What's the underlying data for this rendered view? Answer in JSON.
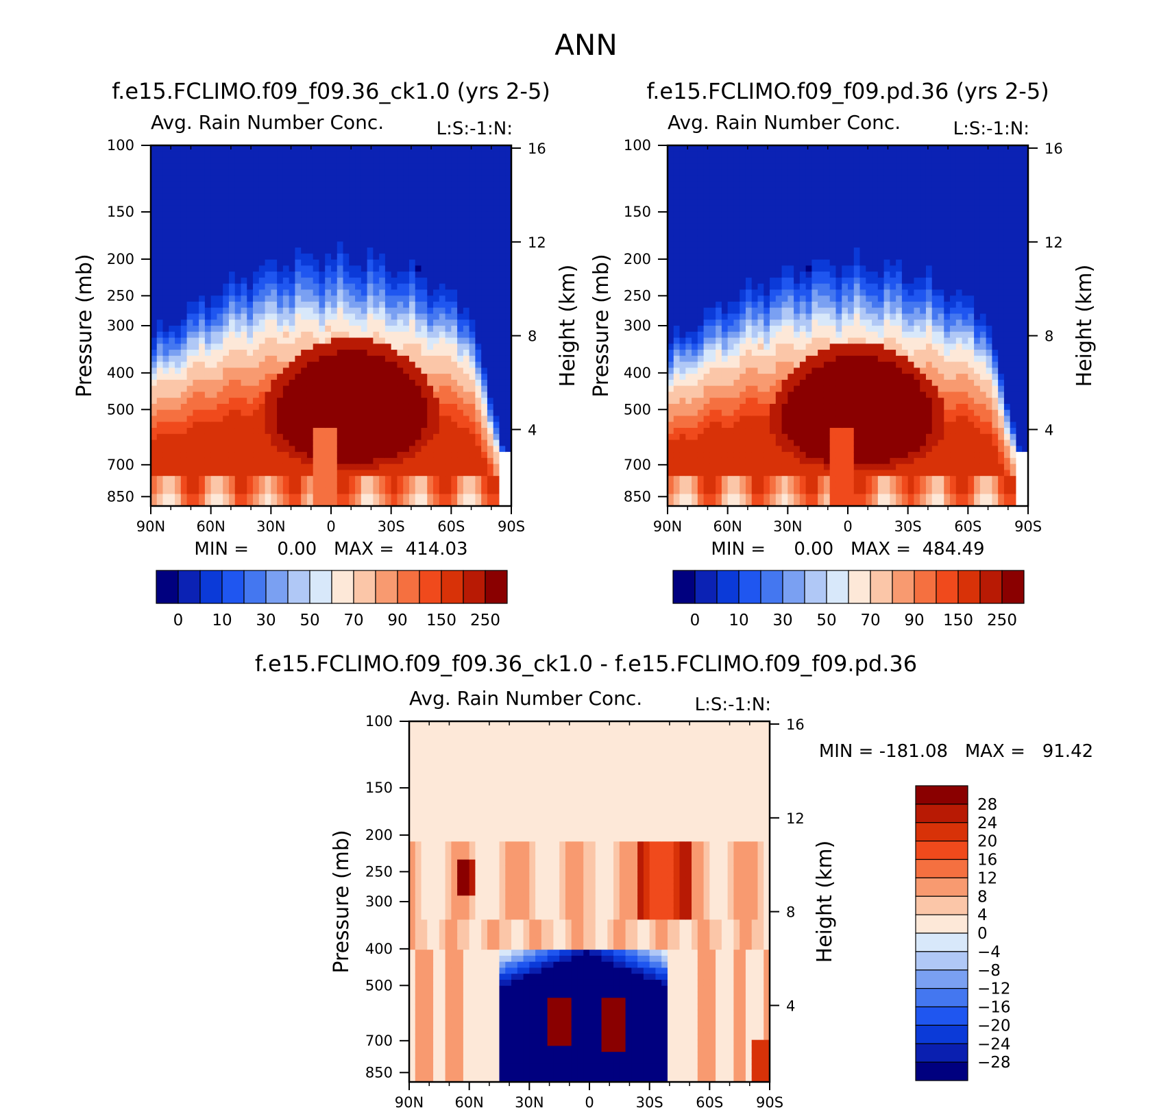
{
  "figure": {
    "title": "ANN"
  },
  "left_axis": {
    "label": "Pressure (mb)",
    "ticks": [
      100,
      150,
      200,
      250,
      300,
      400,
      500,
      700,
      850
    ]
  },
  "right_axis": {
    "label": "Height (km)",
    "ticks": [
      16,
      12,
      8,
      4
    ]
  },
  "lat_ticks": [
    "90N",
    "60N",
    "30N",
    "0",
    "30S",
    "60S",
    "90S"
  ],
  "colors": {
    "levels14": [
      "#00007f",
      "#0a1fb0",
      "#0b3ad8",
      "#1f56f0",
      "#4477f0",
      "#7aa0f2",
      "#b0c8f6",
      "#d8e8fa",
      "#fde8d8",
      "#fbc6a8",
      "#f89a70",
      "#f57040",
      "#f04a1c",
      "#d83208",
      "#b81a04",
      "#8a0000"
    ],
    "panel_levels": [
      "#00007f",
      "#0b22b4",
      "#0b3ad8",
      "#1f56f0",
      "#4477f0",
      "#7aa0f2",
      "#b0c8f6",
      "#d8e8fa",
      "#fde8d8",
      "#fbc6a8",
      "#f89a70",
      "#f57040",
      "#f04a1c",
      "#d83208",
      "#b81a04",
      "#8a0000"
    ],
    "diff_levels": [
      "#00007f",
      "#0a1fb0",
      "#0b3ad8",
      "#1f56f0",
      "#4477f0",
      "#7aa0f2",
      "#b0c8f6",
      "#d8e8fa",
      "#fde8d8",
      "#fbc6a8",
      "#f89a70",
      "#f57040",
      "#f04a1c",
      "#d83208",
      "#b81a04",
      "#8a0000"
    ]
  },
  "chart_data": [
    {
      "type": "heatmap",
      "title": "f.e15.FCLIMO.f09_f09.36_ck1.0 (yrs 2-5)",
      "subtitle": "Avg. Rain Number Conc.",
      "corner_label": "L:S:-1:N:",
      "xlabel": "",
      "ylabel": "Pressure (mb)",
      "ylabel_right": "Height (km)",
      "x_ticks": [
        "90N",
        "60N",
        "30N",
        "0",
        "30S",
        "60S",
        "90S"
      ],
      "y_ticks": [
        100,
        150,
        200,
        250,
        300,
        400,
        500,
        700,
        850
      ],
      "y_ticks_right": [
        16,
        12,
        8,
        4
      ],
      "y_scale": "log",
      "stats": "MIN =     0.00   MAX =  414.03",
      "min": 0.0,
      "max": 414.03,
      "colorbar_labels": [
        "0",
        "10",
        "30",
        "50",
        "70",
        "90",
        "150",
        "250"
      ],
      "colorbar_orientation": "horizontal",
      "field": {
        "top_pressure_at_equator": 310,
        "top_pressure_at_poles": 420,
        "core_value": 300
      }
    },
    {
      "type": "heatmap",
      "title": "f.e15.FCLIMO.f09_f09.pd.36 (yrs 2-5)",
      "subtitle": "Avg. Rain Number Conc.",
      "corner_label": "L:S:-1:N:",
      "xlabel": "",
      "ylabel": "Pressure (mb)",
      "ylabel_right": "Height (km)",
      "x_ticks": [
        "90N",
        "60N",
        "30N",
        "0",
        "30S",
        "60S",
        "90S"
      ],
      "y_ticks": [
        100,
        150,
        200,
        250,
        300,
        400,
        500,
        700,
        850
      ],
      "y_ticks_right": [
        16,
        12,
        8,
        4
      ],
      "y_scale": "log",
      "stats": "MIN =     0.00   MAX =  484.49",
      "min": 0.0,
      "max": 484.49,
      "colorbar_labels": [
        "0",
        "10",
        "30",
        "50",
        "70",
        "90",
        "150",
        "250"
      ],
      "colorbar_orientation": "horizontal"
    },
    {
      "type": "heatmap",
      "title": "f.e15.FCLIMO.f09_f09.36_ck1.0 - f.e15.FCLIMO.f09_f09.pd.36",
      "subtitle": "Avg. Rain Number Conc.",
      "corner_label": "L:S:-1:N:",
      "xlabel": "",
      "ylabel": "Pressure (mb)",
      "ylabel_right": "Height (km)",
      "x_ticks": [
        "90N",
        "60N",
        "30N",
        "0",
        "30S",
        "60S",
        "90S"
      ],
      "y_ticks": [
        100,
        150,
        200,
        250,
        300,
        400,
        500,
        700,
        850
      ],
      "y_ticks_right": [
        16,
        12,
        8,
        4
      ],
      "y_scale": "log",
      "stats": "MIN = -181.08   MAX =   91.42",
      "min": -181.08,
      "max": 91.42,
      "colorbar_labels": [
        "28",
        "24",
        "20",
        "16",
        "12",
        "8",
        "4",
        "0",
        "-4",
        "-8",
        "-12",
        "-16",
        "-20",
        "-24",
        "-28"
      ],
      "colorbar_orientation": "vertical"
    }
  ]
}
